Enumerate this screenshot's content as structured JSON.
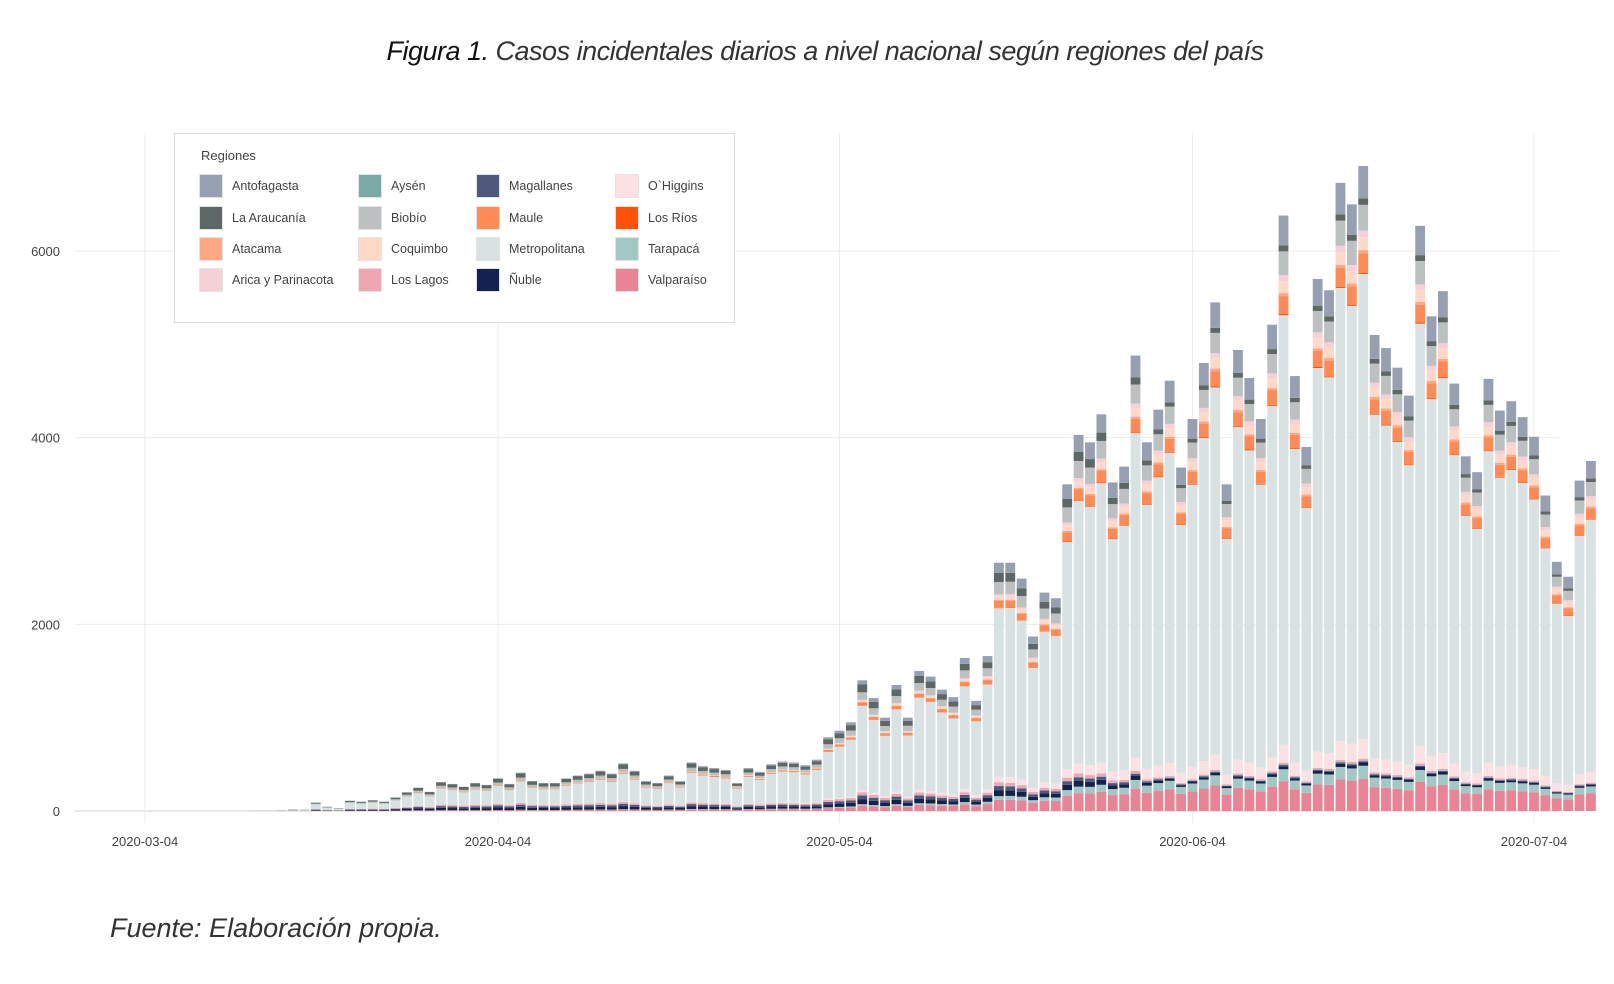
{
  "figure": {
    "title_lead": "Figura 1.",
    "title_rest": " Casos incidentales diarios a nivel nacional según regiones del país",
    "footer": "Fuente: Elaboración propia."
  },
  "chart_data": {
    "type": "bar",
    "stacked": true,
    "title": "Casos incidentales diarios a nivel nacional según regiones del país",
    "xlabel": "",
    "ylabel": "",
    "ylim": [
      0,
      7000
    ],
    "yticks": [
      0,
      2000,
      4000,
      6000
    ],
    "xticks": [
      "2020-03-04",
      "2020-04-04",
      "2020-05-04",
      "2020-06-04",
      "2020-07-04"
    ],
    "xlim": [
      "2020-03-01",
      "2020-07-06"
    ],
    "grid": true,
    "legend": {
      "title": "Regiones",
      "placement": "top-left"
    },
    "regions": [
      {
        "name": "Antofagasta",
        "color": "#979fb2"
      },
      {
        "name": "La Araucanía",
        "color": "#5c6766"
      },
      {
        "name": "Atacama",
        "color": "#ffa783"
      },
      {
        "name": "Arica y Parinacota",
        "color": "#f5d0d6"
      },
      {
        "name": "Aysén",
        "color": "#79aaa6"
      },
      {
        "name": "Biobío",
        "color": "#bcc0c0"
      },
      {
        "name": "Coquimbo",
        "color": "#ffd8c7"
      },
      {
        "name": "Los Lagos",
        "color": "#f0a6b2"
      },
      {
        "name": "Magallanes",
        "color": "#4e587a"
      },
      {
        "name": "Maule",
        "color": "#ff8a55"
      },
      {
        "name": "Metropolitana",
        "color": "#d8e2e3"
      },
      {
        "name": "Ñuble",
        "color": "#13214f"
      },
      {
        "name": "O`Higgins",
        "color": "#fbe1e3"
      },
      {
        "name": "Los Ríos",
        "color": "#ff5206"
      },
      {
        "name": "Tarapacá",
        "color": "#a2c8c5"
      },
      {
        "name": "Valparaíso",
        "color": "#e88494"
      }
    ],
    "stack_order": [
      "Valparaíso",
      "Tarapacá",
      "Ñuble",
      "Magallanes",
      "Aysén",
      "Los Lagos",
      "O`Higgins",
      "Metropolitana",
      "Los Ríos",
      "Maule",
      "Atacama",
      "Coquimbo",
      "Arica y Parinacota",
      "Biobío",
      "La Araucanía",
      "Antofagasta"
    ],
    "start_date": "2020-03-14",
    "totals": [
      5,
      5,
      10,
      20,
      15,
      90,
      45,
      30,
      110,
      100,
      115,
      100,
      145,
      200,
      250,
      205,
      310,
      290,
      260,
      300,
      280,
      350,
      290,
      410,
      320,
      300,
      300,
      350,
      380,
      400,
      430,
      400,
      510,
      430,
      320,
      300,
      380,
      320,
      520,
      480,
      460,
      440,
      300,
      460,
      420,
      500,
      530,
      520,
      490,
      550,
      790,
      860,
      950,
      1400,
      1210,
      1000,
      1350,
      1000,
      1500,
      1440,
      1300,
      1220,
      1640,
      1180,
      1660,
      2660,
      2660,
      2490,
      1870,
      2340,
      2280,
      3500,
      4030,
      3950,
      4250,
      3520,
      3690,
      4880,
      3950,
      4300,
      4610,
      3680,
      4200,
      4800,
      5450,
      3500,
      4940,
      4640,
      4200,
      5210,
      6380,
      4660,
      3900,
      5700,
      5580,
      6730,
      6500,
      6910,
      5100,
      4960,
      4750,
      4450,
      6270,
      5300,
      5570,
      4580,
      3800,
      3630,
      4630,
      4290,
      4390,
      4220,
      4010,
      3380,
      2670,
      2510,
      3540,
      3750
    ],
    "share_profile": {
      "early": {
        "Metropolitana": 0.55,
        "La Araucanía": 0.12,
        "Biobío": 0.08,
        "Ñuble": 0.08,
        "Magallanes": 0.06,
        "Los Lagos": 0.05,
        "Valparaíso": 0.03,
        "Antofagasta": 0.01,
        "Maule": 0.02
      },
      "late": {
        "Metropolitana": 0.72,
        "Valparaíso": 0.05,
        "Tarapacá": 0.02,
        "Ñuble": 0.005,
        "O`Higgins": 0.03,
        "Antofagasta": 0.05,
        "Biobío": 0.04,
        "Coquimbo": 0.02,
        "Maule": 0.03,
        "Arica y Parinacota": 0.01,
        "La Araucanía": 0.01,
        "Atacama": 0.005,
        "Los Lagos": 0.003,
        "Los Ríos": 0.002,
        "Aysén": 0.001,
        "Magallanes": 0.002
      }
    }
  }
}
